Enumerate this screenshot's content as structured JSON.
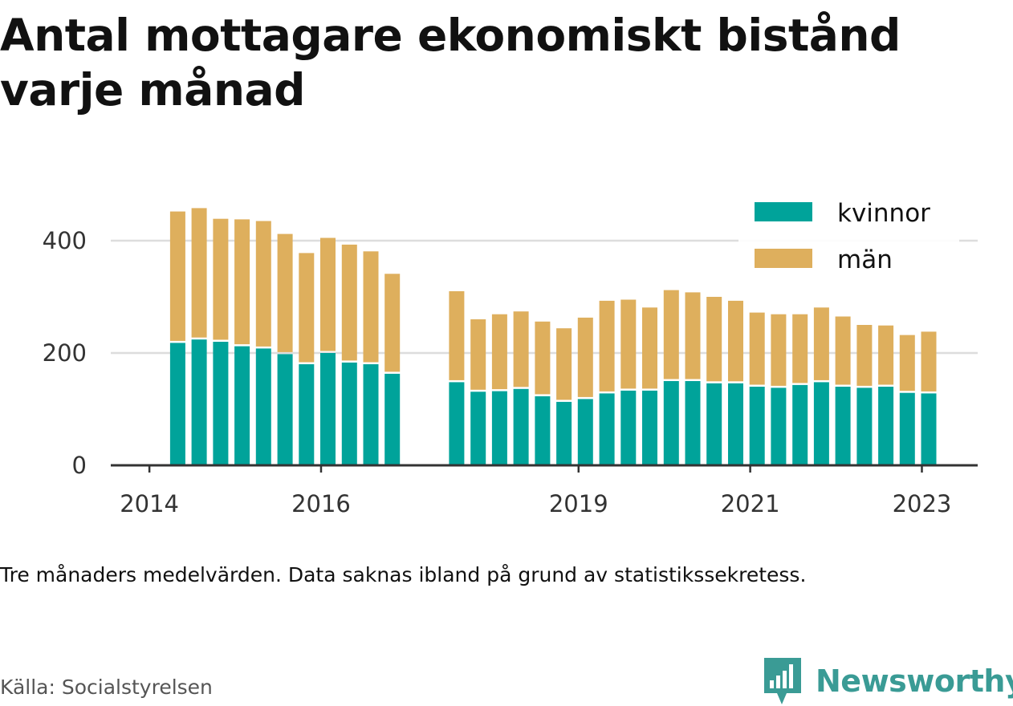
{
  "title": "Antal mottagare ekonomiskt bistånd varje månad",
  "note": "Tre månaders medelvärden. Data saknas ibland på grund av statistikssekretess.",
  "source": "Källa: Socialstyrelsen",
  "brand": {
    "name": "Newsworthy",
    "icon": "bar-chart-speech-bubble-icon"
  },
  "colors": {
    "kvinnor": "#00a39a",
    "man": "#deaf5d",
    "grid": "#dddddd",
    "axis": "#333333"
  },
  "chart_data": {
    "type": "bar",
    "stacked": true,
    "x_ticks": [
      "2014",
      "2016",
      "2019",
      "2021",
      "2023"
    ],
    "x_tick_dates": [
      2014.0,
      2016.0,
      2019.0,
      2021.0,
      2023.0
    ],
    "y_ticks": [
      0,
      200,
      400
    ],
    "ylim": [
      0,
      460
    ],
    "xlim": [
      2013.55,
      2023.65
    ],
    "grid": "horizontal",
    "legend": "top-right",
    "x": [
      2014.33,
      2014.58,
      2014.83,
      2015.08,
      2015.33,
      2015.58,
      2015.83,
      2016.08,
      2016.33,
      2016.58,
      2016.83,
      2017.58,
      2017.83,
      2018.08,
      2018.33,
      2018.58,
      2018.83,
      2019.08,
      2019.33,
      2019.58,
      2019.83,
      2020.08,
      2020.33,
      2020.58,
      2020.83,
      2021.08,
      2021.33,
      2021.58,
      2021.83,
      2022.08,
      2022.33,
      2022.58,
      2022.83,
      2023.08
    ],
    "series": [
      {
        "name": "kvinnor",
        "color": "#00a39a",
        "values": [
          218,
          224,
          220,
          212,
          208,
          198,
          180,
          200,
          183,
          180,
          163,
          148,
          131,
          132,
          136,
          123,
          113,
          118,
          128,
          133,
          133,
          150,
          150,
          146,
          146,
          140,
          138,
          143,
          148,
          140,
          138,
          140,
          129,
          128
        ]
      },
      {
        "name": "män",
        "color": "#deaf5d",
        "values": [
          234,
          234,
          219,
          226,
          227,
          214,
          198,
          205,
          210,
          201,
          178,
          162,
          129,
          137,
          138,
          133,
          131,
          145,
          165,
          162,
          148,
          162,
          158,
          154,
          147,
          132,
          131,
          126,
          133,
          125,
          112,
          109,
          103,
          110
        ]
      }
    ]
  }
}
